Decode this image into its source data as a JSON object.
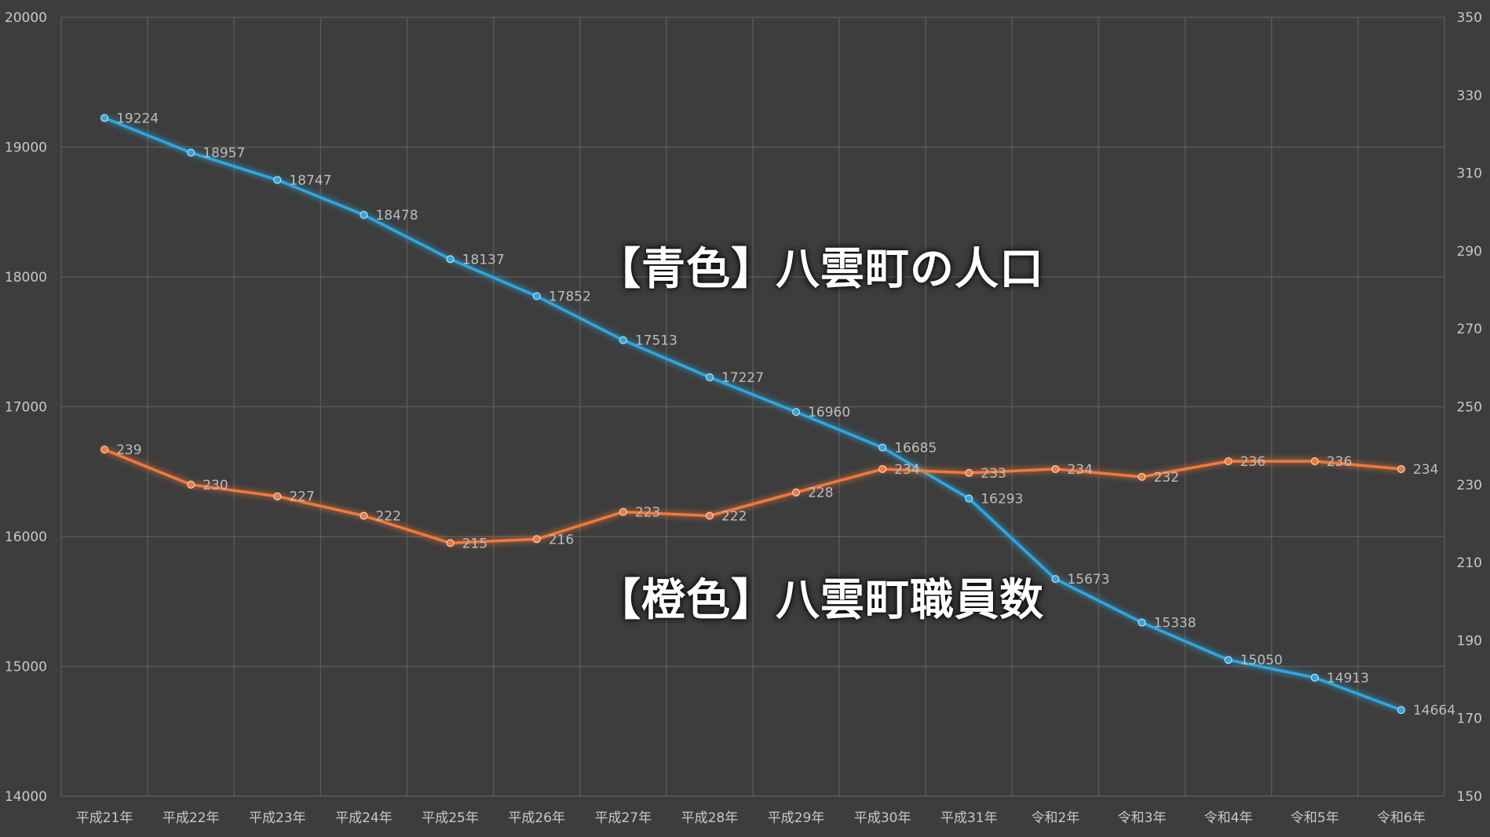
{
  "chart_data": {
    "type": "line",
    "categories": [
      "平成21年",
      "平成22年",
      "平成23年",
      "平成24年",
      "平成25年",
      "平成26年",
      "平成27年",
      "平成28年",
      "平成29年",
      "平成30年",
      "平成31年",
      "令和2年",
      "令和3年",
      "令和4年",
      "令和5年",
      "令和6年"
    ],
    "left_axis": {
      "ylim": [
        14000,
        20000
      ],
      "ticks": [
        "14000",
        "15000",
        "16000",
        "17000",
        "18000",
        "19000",
        "20000"
      ]
    },
    "right_axis": {
      "ylim": [
        150,
        350
      ],
      "ticks": [
        "150",
        "170",
        "190",
        "210",
        "230",
        "250",
        "270",
        "290",
        "310",
        "330",
        "350"
      ]
    },
    "series": [
      {
        "name": "【青色】八雲町の人口",
        "axis": "left",
        "color": "#2ea7e0",
        "values": [
          19224,
          18957,
          18747,
          18478,
          18137,
          17852,
          17513,
          17227,
          16960,
          16685,
          16293,
          15673,
          15338,
          15050,
          14913,
          14664
        ]
      },
      {
        "name": "【橙色】八雲町職員数",
        "axis": "right",
        "color": "#f07a3a",
        "values": [
          239,
          230,
          227,
          222,
          215,
          216,
          223,
          222,
          228,
          234,
          233,
          234,
          232,
          236,
          236,
          234
        ]
      }
    ],
    "grid": true,
    "background": "#3d3d3d",
    "gridline_color": "#585858"
  },
  "annotations": {
    "blue_label": "【青色】八雲町の人口",
    "orange_label": "【橙色】八雲町職員数"
  }
}
